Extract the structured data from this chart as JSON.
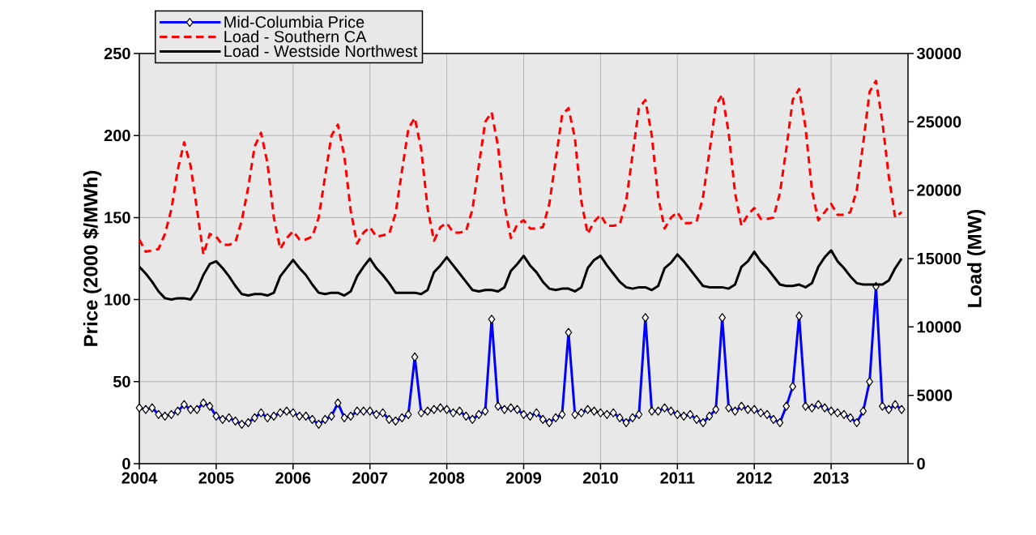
{
  "chart_data": {
    "type": "line",
    "ylabel": "Price (2000 $/MWh)",
    "y2label": "Load (MW)",
    "x": [
      "2004-01",
      "2004-02",
      "2004-03",
      "2004-04",
      "2004-05",
      "2004-06",
      "2004-07",
      "2004-08",
      "2004-09",
      "2004-10",
      "2004-11",
      "2004-12",
      "2005-01",
      "2005-02",
      "2005-03",
      "2005-04",
      "2005-05",
      "2005-06",
      "2005-07",
      "2005-08",
      "2005-09",
      "2005-10",
      "2005-11",
      "2005-12",
      "2006-01",
      "2006-02",
      "2006-03",
      "2006-04",
      "2006-05",
      "2006-06",
      "2006-07",
      "2006-08",
      "2006-09",
      "2006-10",
      "2006-11",
      "2006-12",
      "2007-01",
      "2007-02",
      "2007-03",
      "2007-04",
      "2007-05",
      "2007-06",
      "2007-07",
      "2007-08",
      "2007-09",
      "2007-10",
      "2007-11",
      "2007-12",
      "2008-01",
      "2008-02",
      "2008-03",
      "2008-04",
      "2008-05",
      "2008-06",
      "2008-07",
      "2008-08",
      "2008-09",
      "2008-10",
      "2008-11",
      "2008-12",
      "2009-01",
      "2009-02",
      "2009-03",
      "2009-04",
      "2009-05",
      "2009-06",
      "2009-07",
      "2009-08",
      "2009-09",
      "2009-10",
      "2009-11",
      "2009-12",
      "2010-01",
      "2010-02",
      "2010-03",
      "2010-04",
      "2010-05",
      "2010-06",
      "2010-07",
      "2010-08",
      "2010-09",
      "2010-10",
      "2010-11",
      "2010-12",
      "2011-01",
      "2011-02",
      "2011-03",
      "2011-04",
      "2011-05",
      "2011-06",
      "2011-07",
      "2011-08",
      "2011-09",
      "2011-10",
      "2011-11",
      "2011-12",
      "2012-01",
      "2012-02",
      "2012-03",
      "2012-04",
      "2012-05",
      "2012-06",
      "2012-07",
      "2012-08",
      "2012-09",
      "2012-10",
      "2012-11",
      "2012-12",
      "2013-01",
      "2013-02",
      "2013-03",
      "2013-04",
      "2013-05",
      "2013-06",
      "2013-07",
      "2013-08",
      "2013-09",
      "2013-10",
      "2013-11",
      "2013-12"
    ],
    "series": [
      {
        "name": "Mid-Columbia Price",
        "color": "#0000ff",
        "axis": "y",
        "marker": "diamond",
        "line_style": "solid",
        "values": [
          34,
          33,
          34,
          30,
          29,
          30,
          32,
          36,
          33,
          33,
          37,
          35,
          29,
          27,
          28,
          26,
          24,
          25,
          28,
          31,
          28,
          29,
          31,
          32,
          31,
          29,
          29,
          27,
          24,
          27,
          29,
          37,
          28,
          29,
          32,
          32,
          32,
          30,
          31,
          27,
          26,
          28,
          30,
          65,
          31,
          32,
          33,
          34,
          33,
          31,
          32,
          29,
          27,
          30,
          32,
          88,
          35,
          33,
          34,
          33,
          30,
          29,
          31,
          27,
          25,
          28,
          30,
          80,
          30,
          31,
          33,
          32,
          31,
          30,
          31,
          28,
          25,
          28,
          30,
          89,
          32,
          32,
          34,
          32,
          30,
          29,
          30,
          27,
          25,
          29,
          33,
          89,
          34,
          32,
          35,
          33,
          33,
          31,
          30,
          27,
          25,
          35,
          47,
          90,
          35,
          34,
          36,
          34,
          32,
          31,
          30,
          28,
          25,
          32,
          50,
          108,
          35,
          33,
          36,
          33
        ]
      },
      {
        "name": "Load - Southern CA",
        "color": "#ff0000",
        "axis": "y2",
        "marker": "none",
        "line_style": "dashed",
        "values": [
          16400,
          15500,
          15600,
          15700,
          16800,
          18600,
          21500,
          23500,
          21800,
          18600,
          15300,
          16800,
          16600,
          16000,
          16000,
          16200,
          17800,
          20200,
          23200,
          24200,
          22000,
          18000,
          15700,
          16500,
          17000,
          16400,
          16400,
          16600,
          18000,
          21000,
          24000,
          24800,
          22500,
          18500,
          16100,
          16900,
          17300,
          16600,
          16700,
          16800,
          18300,
          21400,
          24500,
          25300,
          23000,
          18700,
          16300,
          17300,
          17600,
          16900,
          16900,
          17000,
          18600,
          21800,
          25000,
          25700,
          23200,
          18900,
          16500,
          17500,
          17800,
          17200,
          17200,
          17300,
          19000,
          22200,
          25500,
          26000,
          23800,
          19200,
          16800,
          17700,
          18200,
          17400,
          17400,
          17500,
          19200,
          22600,
          26000,
          26600,
          24000,
          19500,
          17200,
          18000,
          18400,
          17600,
          17600,
          17700,
          19500,
          22800,
          26200,
          27000,
          24200,
          19800,
          17400,
          18200,
          18700,
          17900,
          17900,
          18000,
          19800,
          23000,
          26600,
          27400,
          24600,
          20000,
          17800,
          18400,
          19000,
          18200,
          18200,
          18400,
          20000,
          23400,
          27200,
          28000,
          25000,
          21000,
          18000,
          18400
        ]
      },
      {
        "name": "Load - Westside Northwest",
        "color": "#000000",
        "axis": "y2",
        "marker": "none",
        "line_style": "solid",
        "values": [
          14400,
          13900,
          13300,
          12600,
          12100,
          12000,
          12100,
          12100,
          12000,
          12700,
          13800,
          14600,
          14800,
          14300,
          13700,
          13000,
          12400,
          12300,
          12400,
          12400,
          12300,
          12500,
          13700,
          14300,
          14900,
          14300,
          13800,
          13100,
          12500,
          12400,
          12500,
          12500,
          12300,
          12600,
          13700,
          14400,
          15000,
          14300,
          13800,
          13200,
          12500,
          12500,
          12500,
          12500,
          12400,
          12700,
          14000,
          14500,
          15100,
          14500,
          13900,
          13300,
          12700,
          12600,
          12700,
          12700,
          12600,
          12900,
          14100,
          14600,
          15200,
          14500,
          14000,
          13300,
          12800,
          12700,
          12800,
          12800,
          12600,
          12900,
          14300,
          14900,
          15200,
          14500,
          13900,
          13300,
          12900,
          12800,
          12900,
          12900,
          12700,
          13000,
          14300,
          14700,
          15300,
          14800,
          14200,
          13600,
          13000,
          12900,
          12900,
          12900,
          12800,
          13100,
          14400,
          14800,
          15500,
          14800,
          14300,
          13700,
          13100,
          13000,
          13000,
          13100,
          12900,
          13200,
          14400,
          15100,
          15600,
          14800,
          14300,
          13700,
          13200,
          13100,
          13100,
          13100,
          13100,
          13400,
          14300,
          15000
        ]
      }
    ],
    "xlim": [
      "2004",
      "2014"
    ],
    "xticks": [
      "2004",
      "2005",
      "2006",
      "2007",
      "2008",
      "2009",
      "2010",
      "2011",
      "2012",
      "2013"
    ],
    "ylim": [
      0,
      250
    ],
    "yticks": [
      0,
      50,
      100,
      150,
      200,
      250
    ],
    "y2lim": [
      0,
      30000
    ],
    "y2ticks": [
      0,
      5000,
      10000,
      15000,
      20000,
      25000,
      30000
    ],
    "grid": true,
    "legend": "top left"
  }
}
